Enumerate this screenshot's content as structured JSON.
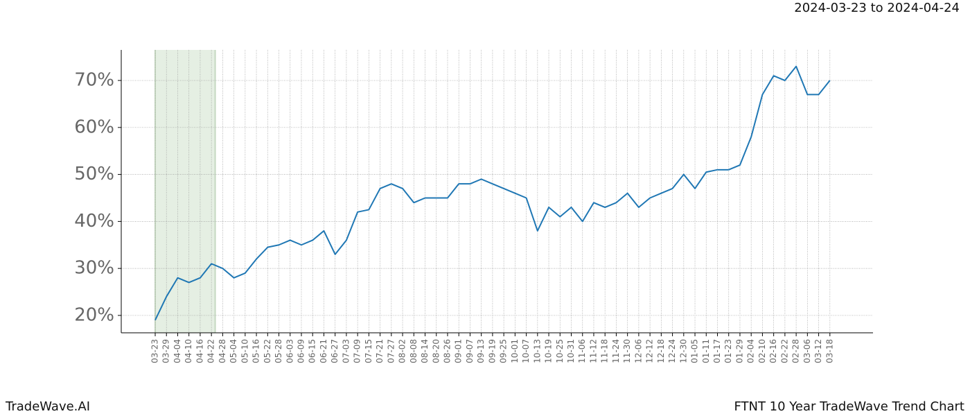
{
  "chart_data": {
    "type": "line",
    "title": "2024-03-23 to 2024-04-24",
    "footer_left": "TradeWave.AI",
    "footer_right": "FTNT 10 Year TradeWave Trend Chart",
    "categories": [
      "03-23",
      "03-29",
      "04-04",
      "04-10",
      "04-16",
      "04-22",
      "04-28",
      "05-04",
      "05-10",
      "05-16",
      "05-22",
      "05-28",
      "06-03",
      "06-09",
      "06-15",
      "06-21",
      "06-27",
      "07-03",
      "07-09",
      "07-15",
      "07-21",
      "07-27",
      "08-02",
      "08-08",
      "08-14",
      "08-20",
      "08-26",
      "09-01",
      "09-07",
      "09-13",
      "09-19",
      "09-25",
      "10-01",
      "10-07",
      "10-13",
      "10-19",
      "10-25",
      "10-31",
      "11-06",
      "11-12",
      "11-18",
      "11-24",
      "11-30",
      "12-06",
      "12-12",
      "12-18",
      "12-24",
      "12-30",
      "01-05",
      "01-11",
      "01-17",
      "01-23",
      "01-29",
      "02-04",
      "02-10",
      "02-16",
      "02-22",
      "02-28",
      "03-06",
      "03-12",
      "03-18"
    ],
    "values": [
      19,
      24,
      28,
      27,
      28,
      31,
      30,
      28,
      29,
      32,
      34.5,
      35,
      36,
      35,
      36,
      38,
      33,
      36,
      42,
      42.5,
      47,
      48,
      47,
      44,
      45,
      45,
      45,
      48,
      48,
      49,
      48,
      47,
      46,
      45,
      38,
      43,
      41,
      43,
      40,
      44,
      43,
      44,
      46,
      43,
      45,
      46,
      47,
      50,
      47,
      50.5,
      51,
      51,
      52,
      58,
      67,
      71,
      70,
      73,
      67,
      67,
      70
    ],
    "color": "#1f77b4",
    "shade": {
      "from": "03-23",
      "to": "04-24",
      "color": "#e5efe3"
    },
    "ylim": [
      16.3,
      76.5
    ],
    "yticks": [
      {
        "value": 20,
        "label": "20%"
      },
      {
        "value": 30,
        "label": "30%"
      },
      {
        "value": 40,
        "label": "40%"
      },
      {
        "value": 50,
        "label": "50%"
      },
      {
        "value": 60,
        "label": "60%"
      },
      {
        "value": 70,
        "label": "70%"
      }
    ],
    "grid": true
  }
}
